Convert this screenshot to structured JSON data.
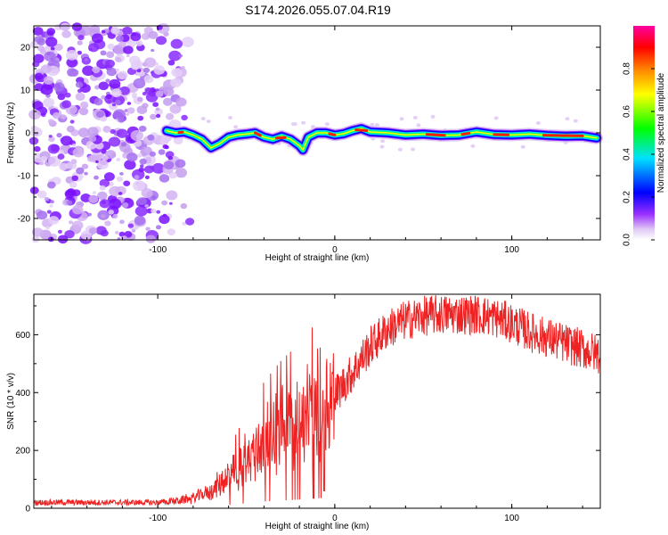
{
  "title": "S174.2026.055.07.04.R19",
  "chart_data": [
    {
      "type": "heatmap",
      "xlabel": "Height of straight line (km)",
      "ylabel": "Frequency (Hz)",
      "xlim": [
        -170,
        150
      ],
      "ylim": [
        -25,
        25
      ],
      "x_ticks": [
        -100,
        0,
        100
      ],
      "y_ticks": [
        -20,
        -10,
        0,
        10,
        20
      ],
      "ridge": {
        "x": [
          -95,
          -90,
          -85,
          -80,
          -75,
          -70,
          -65,
          -60,
          -55,
          -50,
          -45,
          -40,
          -35,
          -30,
          -25,
          -20,
          -18,
          -15,
          -10,
          -5,
          0,
          5,
          10,
          15,
          20,
          30,
          40,
          50,
          60,
          70,
          80,
          90,
          100,
          110,
          120,
          130,
          140,
          148
        ],
        "y": [
          0.5,
          0,
          0.2,
          -0.5,
          -1.5,
          -3.5,
          -2.5,
          -1,
          -0.5,
          -0.3,
          0,
          -1,
          -1.5,
          -0.8,
          -1.5,
          -3,
          -4,
          -1,
          0,
          0,
          -0.5,
          -0.2,
          0.5,
          1,
          0.2,
          0,
          -0.5,
          -0.3,
          -0.6,
          -0.5,
          0.2,
          -0.4,
          -0.5,
          -0.3,
          -0.6,
          -0.8,
          -0.7,
          -1.2
        ]
      },
      "colorbar": {
        "label": "Normalized spectral amplitude",
        "ticks": [
          "0.0",
          "0.2",
          "0.4",
          "0.6",
          "0.8"
        ],
        "tick_values": [
          0.0,
          0.2,
          0.4,
          0.6,
          0.8
        ],
        "range": [
          0,
          1
        ],
        "colors": [
          "#ffffff",
          "#e0c8f4",
          "#8a00ff",
          "#0000ff",
          "#00e0ff",
          "#00ff00",
          "#ffff00",
          "#ff8000",
          "#ff0000",
          "#ff00ff"
        ]
      }
    },
    {
      "type": "line",
      "xlabel": "Height of straight line (km)",
      "ylabel": "SNR (10 * v/v)",
      "xlim": [
        -170,
        150
      ],
      "ylim": [
        0,
        740
      ],
      "x_ticks": [
        -100,
        0,
        100
      ],
      "y_ticks": [
        0,
        200,
        400,
        600
      ],
      "color": "#ee2222",
      "envelope": {
        "x": [
          -170,
          -100,
          -90,
          -80,
          -70,
          -60,
          -50,
          -40,
          -30,
          -20,
          -10,
          0,
          10,
          20,
          30,
          40,
          50,
          60,
          70,
          80,
          90,
          100,
          110,
          120,
          130,
          140,
          150
        ],
        "y": [
          20,
          20,
          25,
          35,
          60,
          110,
          170,
          230,
          270,
          300,
          340,
          390,
          470,
          560,
          620,
          650,
          665,
          670,
          670,
          670,
          660,
          640,
          610,
          590,
          570,
          550,
          530
        ]
      }
    }
  ]
}
